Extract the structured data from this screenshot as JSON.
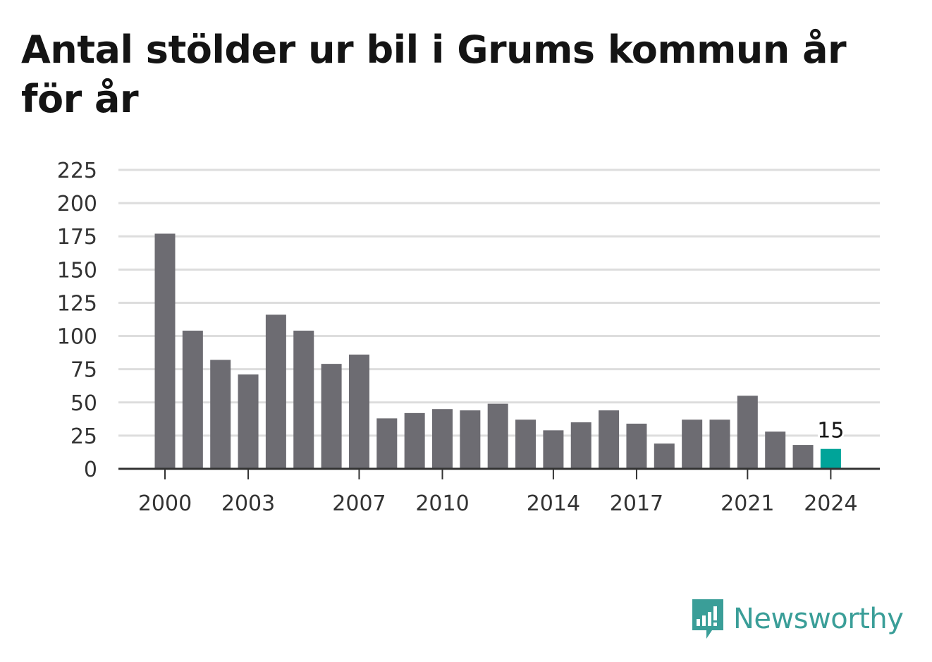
{
  "title": "Antal stölder ur bil i Grums kommun år för år",
  "brand": {
    "name": "Newsworthy",
    "icon": "newsworthy-logo-icon",
    "color": "#3a9e98"
  },
  "colors": {
    "bar": "#6d6c72",
    "highlight": "#00a499",
    "grid": "#dddddd",
    "axis": "#333333"
  },
  "chart_data": {
    "type": "bar",
    "title": "Antal stölder ur bil i Grums kommun år för år",
    "xlabel": "",
    "ylabel": "",
    "categories": [
      2000,
      2001,
      2002,
      2003,
      2004,
      2005,
      2006,
      2007,
      2008,
      2009,
      2010,
      2011,
      2012,
      2013,
      2014,
      2015,
      2016,
      2017,
      2018,
      2019,
      2020,
      2021,
      2022,
      2023,
      2024
    ],
    "values": [
      177,
      104,
      82,
      71,
      116,
      104,
      79,
      86,
      38,
      42,
      45,
      44,
      49,
      37,
      29,
      35,
      44,
      34,
      19,
      37,
      37,
      55,
      28,
      18,
      15
    ],
    "ylim": [
      0,
      225
    ],
    "yticks": [
      0,
      25,
      50,
      75,
      100,
      125,
      150,
      175,
      200,
      225
    ],
    "xticks": [
      2000,
      2003,
      2007,
      2010,
      2014,
      2017,
      2021,
      2024
    ],
    "grid": "horizontal",
    "highlight": {
      "category": 2024,
      "label": "15"
    }
  }
}
